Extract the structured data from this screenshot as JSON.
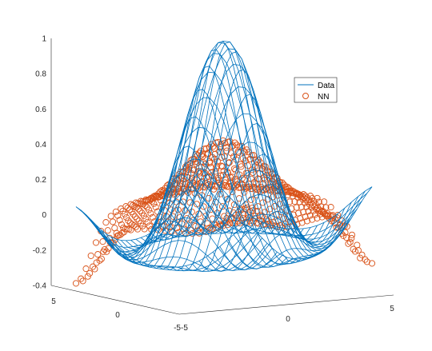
{
  "chart_data": {
    "type": "surface-3d",
    "title": "",
    "xlabel": "",
    "ylabel": "",
    "zlabel": "",
    "grid": false,
    "legend_placement": "top-right",
    "xlim": [
      -5,
      5
    ],
    "ylim": [
      -5,
      5
    ],
    "zlim": [
      -0.4,
      1
    ],
    "x_ticks": [
      "-5",
      "0",
      "5"
    ],
    "y_ticks": [
      "-5",
      "0",
      "5"
    ],
    "z_ticks": [
      "-0.4",
      "-0.2",
      "0",
      "0.2",
      "0.4",
      "0.6",
      "0.8",
      "1"
    ],
    "domain": {
      "x": [
        -5,
        5
      ],
      "y": [
        -5,
        5
      ],
      "step": 0.4
    },
    "series": [
      {
        "name": "Data",
        "style": "mesh",
        "color": "#0072BD",
        "function": "sin(r)/r, r = sqrt(x^2 + y^2)",
        "peak": 1.0,
        "min": -0.22
      },
      {
        "name": "NN",
        "style": "circle-markers",
        "color": "#D95319",
        "peak": 0.42,
        "corner_min": -0.34,
        "corner_max": 0.2
      }
    ]
  }
}
